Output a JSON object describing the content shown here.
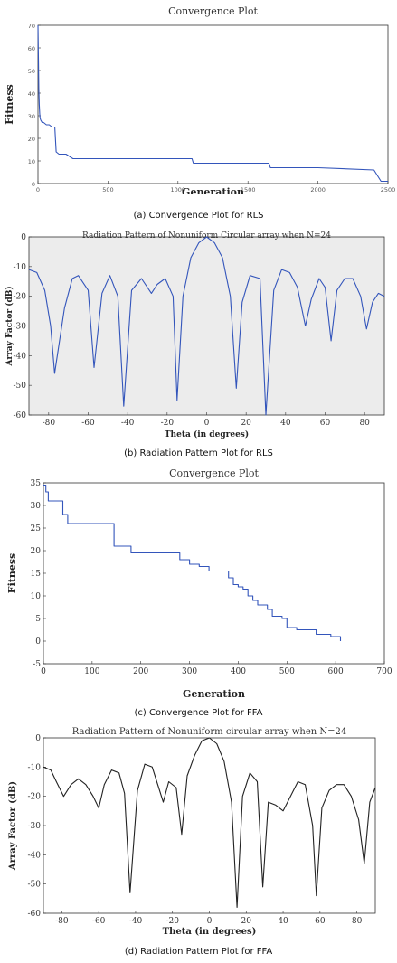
{
  "captions": {
    "a": "(a) Convergence Plot for RLS",
    "b": "(b) Radiation Pattern Plot for RLS",
    "c": "(c) Convergence Plot for FFA",
    "d": "(d) Radiation Pattern Plot for FFA"
  },
  "colors": {
    "rls_line": "#3355bb",
    "ffa_line": "#222222"
  },
  "chart_data": [
    {
      "type": "line",
      "title": "Convergence Plot",
      "xlabel": "Generation",
      "ylabel": "Fitness",
      "xlim": [
        0,
        2500
      ],
      "ylim": [
        0,
        70
      ],
      "xticks": [
        0,
        500,
        1000,
        1500,
        2000,
        2500
      ],
      "yticks": [
        0,
        10,
        20,
        30,
        40,
        50,
        60,
        70
      ],
      "series": [
        {
          "x": [
            0,
            3,
            6,
            9,
            12,
            15,
            20,
            30,
            40,
            60,
            80,
            100,
            120,
            130,
            150,
            200,
            250,
            300,
            1000,
            1100,
            1110,
            1500,
            1650,
            1660,
            2000,
            2400,
            2450,
            2500
          ],
          "y": [
            70,
            55,
            42,
            35,
            31,
            29,
            28,
            27,
            27,
            26,
            26,
            25,
            25,
            14,
            13,
            13,
            11,
            11,
            11,
            11,
            9,
            9,
            9,
            7,
            7,
            6,
            1,
            1
          ]
        }
      ]
    },
    {
      "type": "line",
      "title": "Radiation Pattern of Nonuniform Circular array when N=24",
      "xlabel": "Theta (in degrees)",
      "ylabel": "Array Factor (dB)",
      "xlim": [
        -90,
        90
      ],
      "ylim": [
        -60,
        0
      ],
      "xticks": [
        -80,
        -60,
        -40,
        -20,
        0,
        20,
        40,
        60,
        80
      ],
      "yticks": [
        -60,
        -50,
        -40,
        -30,
        -20,
        -10,
        0
      ],
      "series": [
        {
          "x": [
            -90,
            -86,
            -82,
            -79,
            -77,
            -72,
            -68,
            -65,
            -60,
            -57,
            -53,
            -49,
            -45,
            -42,
            -38,
            -33,
            -28,
            -25,
            -21,
            -17,
            -15,
            -12,
            -8,
            -4,
            0,
            4,
            8,
            12,
            15,
            18,
            22,
            27,
            30,
            34,
            38,
            42,
            46,
            50,
            53,
            57,
            60,
            63,
            66,
            70,
            74,
            78,
            81,
            84,
            87,
            90
          ],
          "y": [
            -11,
            -12,
            -18,
            -30,
            -46,
            -24,
            -14,
            -13,
            -18,
            -44,
            -19,
            -13,
            -20,
            -57,
            -18,
            -14,
            -19,
            -16,
            -14,
            -20,
            -55,
            -20,
            -7,
            -2,
            0,
            -2,
            -7,
            -20,
            -51,
            -22,
            -13,
            -14,
            -60,
            -18,
            -11,
            -12,
            -17,
            -30,
            -21,
            -14,
            -17,
            -35,
            -18,
            -14,
            -14,
            -20,
            -31,
            -22,
            -19,
            -20
          ]
        }
      ]
    },
    {
      "type": "line",
      "title": "Convergence Plot",
      "xlabel": "Generation",
      "ylabel": "Fitness",
      "xlim": [
        0,
        700
      ],
      "ylim": [
        -5,
        35
      ],
      "xticks": [
        0,
        100,
        200,
        300,
        400,
        500,
        600,
        700
      ],
      "yticks": [
        -5,
        0,
        5,
        10,
        15,
        20,
        25,
        30,
        35
      ],
      "series": [
        {
          "x": [
            0,
            5,
            10,
            30,
            40,
            50,
            60,
            140,
            145,
            175,
            180,
            270,
            280,
            300,
            320,
            340,
            370,
            380,
            390,
            400,
            410,
            420,
            430,
            440,
            460,
            470,
            490,
            500,
            520,
            560,
            590,
            610
          ],
          "y": [
            34.5,
            33,
            31,
            31,
            28,
            26,
            26,
            26,
            21,
            21,
            19.5,
            19.5,
            18,
            17,
            16.5,
            15.5,
            15.5,
            14,
            12.5,
            12,
            11.5,
            10,
            9,
            8,
            7,
            5.5,
            5,
            3,
            2.5,
            1.5,
            1,
            0
          ]
        }
      ]
    },
    {
      "type": "line",
      "title": "Radiation Pattern of Nonuniform circular array when N=24",
      "xlabel": "Theta (in degrees)",
      "ylabel": "Array Factor (dB)",
      "xlim": [
        -90,
        90
      ],
      "ylim": [
        -60,
        0
      ],
      "xticks": [
        -80,
        -60,
        -40,
        -20,
        0,
        20,
        40,
        60,
        80
      ],
      "yticks": [
        -60,
        -50,
        -40,
        -30,
        -20,
        -10,
        0
      ],
      "series": [
        {
          "x": [
            -90,
            -86,
            -83,
            -79,
            -75,
            -71,
            -67,
            -63,
            -60,
            -57,
            -53,
            -49,
            -46,
            -43,
            -39,
            -35,
            -31,
            -28,
            -25,
            -22,
            -18,
            -15,
            -12,
            -8,
            -4,
            0,
            4,
            8,
            12,
            15,
            18,
            22,
            26,
            29,
            32,
            36,
            40,
            44,
            48,
            52,
            56,
            58,
            61,
            65,
            69,
            73,
            77,
            81,
            84,
            87,
            90
          ],
          "y": [
            -10,
            -11,
            -15,
            -20,
            -16,
            -14,
            -16,
            -20,
            -24,
            -16,
            -11,
            -12,
            -19,
            -53,
            -18,
            -9,
            -10,
            -16,
            -22,
            -15,
            -17,
            -33,
            -13,
            -6,
            -1,
            0,
            -2,
            -8,
            -22,
            -58,
            -20,
            -12,
            -15,
            -51,
            -22,
            -23,
            -25,
            -20,
            -15,
            -16,
            -30,
            -54,
            -24,
            -18,
            -16,
            -16,
            -20,
            -28,
            -43,
            -22,
            -17
          ]
        }
      ]
    }
  ]
}
